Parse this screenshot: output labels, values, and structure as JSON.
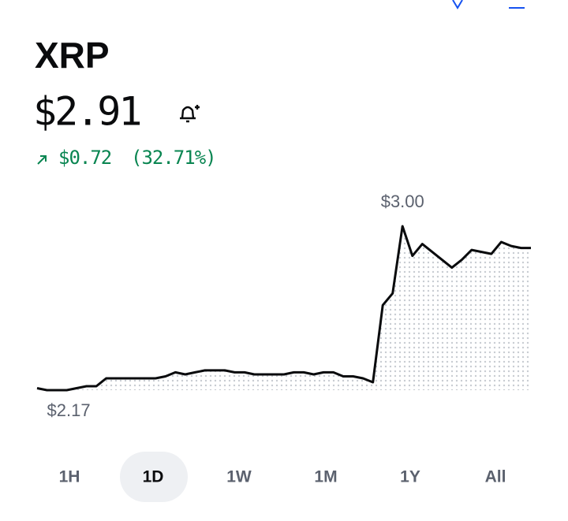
{
  "header": {
    "symbol": "XRP",
    "price": "$2.91",
    "change": "$0.72",
    "change_percent": "(32.71%)"
  },
  "chart_data": {
    "type": "line",
    "color": "#0a0b0d",
    "values": [
      2.18,
      2.17,
      2.17,
      2.17,
      2.18,
      2.19,
      2.19,
      2.23,
      2.23,
      2.23,
      2.23,
      2.23,
      2.23,
      2.24,
      2.26,
      2.25,
      2.26,
      2.27,
      2.27,
      2.27,
      2.26,
      2.26,
      2.25,
      2.25,
      2.25,
      2.25,
      2.26,
      2.26,
      2.25,
      2.26,
      2.26,
      2.24,
      2.24,
      2.23,
      2.21,
      2.6,
      2.66,
      3.0,
      2.85,
      2.91,
      2.87,
      2.83,
      2.79,
      2.83,
      2.88,
      2.87,
      2.86,
      2.92,
      2.9,
      2.89,
      2.89
    ],
    "ylim": [
      2.17,
      3.0
    ],
    "max_label": "$3.00",
    "min_label": "$2.17"
  },
  "timeframes": [
    "1H",
    "1D",
    "1W",
    "1M",
    "1Y",
    "All"
  ],
  "selected_timeframe": 1
}
